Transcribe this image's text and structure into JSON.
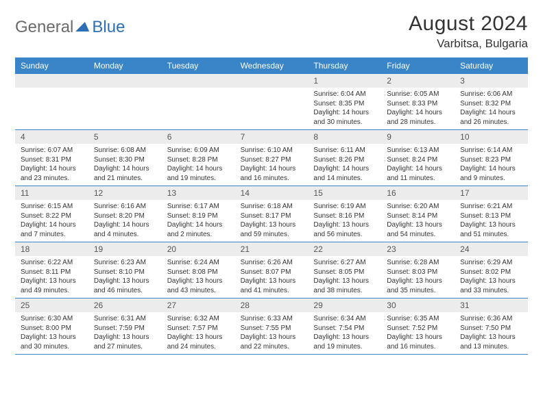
{
  "logo": {
    "part1": "General",
    "part2": "Blue"
  },
  "title": "August 2024",
  "location": "Varbitsa, Bulgaria",
  "colors": {
    "header_bg": "#3a85c8",
    "header_text": "#ffffff",
    "daynum_bg": "#ececec",
    "border": "#3a85c8",
    "logo_gray": "#6a6a6a",
    "logo_blue": "#2d6fb5"
  },
  "day_names": [
    "Sunday",
    "Monday",
    "Tuesday",
    "Wednesday",
    "Thursday",
    "Friday",
    "Saturday"
  ],
  "weeks": [
    [
      {
        "n": "",
        "sr": "",
        "ss": "",
        "dl": ""
      },
      {
        "n": "",
        "sr": "",
        "ss": "",
        "dl": ""
      },
      {
        "n": "",
        "sr": "",
        "ss": "",
        "dl": ""
      },
      {
        "n": "",
        "sr": "",
        "ss": "",
        "dl": ""
      },
      {
        "n": "1",
        "sr": "Sunrise: 6:04 AM",
        "ss": "Sunset: 8:35 PM",
        "dl": "Daylight: 14 hours and 30 minutes."
      },
      {
        "n": "2",
        "sr": "Sunrise: 6:05 AM",
        "ss": "Sunset: 8:33 PM",
        "dl": "Daylight: 14 hours and 28 minutes."
      },
      {
        "n": "3",
        "sr": "Sunrise: 6:06 AM",
        "ss": "Sunset: 8:32 PM",
        "dl": "Daylight: 14 hours and 26 minutes."
      }
    ],
    [
      {
        "n": "4",
        "sr": "Sunrise: 6:07 AM",
        "ss": "Sunset: 8:31 PM",
        "dl": "Daylight: 14 hours and 23 minutes."
      },
      {
        "n": "5",
        "sr": "Sunrise: 6:08 AM",
        "ss": "Sunset: 8:30 PM",
        "dl": "Daylight: 14 hours and 21 minutes."
      },
      {
        "n": "6",
        "sr": "Sunrise: 6:09 AM",
        "ss": "Sunset: 8:28 PM",
        "dl": "Daylight: 14 hours and 19 minutes."
      },
      {
        "n": "7",
        "sr": "Sunrise: 6:10 AM",
        "ss": "Sunset: 8:27 PM",
        "dl": "Daylight: 14 hours and 16 minutes."
      },
      {
        "n": "8",
        "sr": "Sunrise: 6:11 AM",
        "ss": "Sunset: 8:26 PM",
        "dl": "Daylight: 14 hours and 14 minutes."
      },
      {
        "n": "9",
        "sr": "Sunrise: 6:13 AM",
        "ss": "Sunset: 8:24 PM",
        "dl": "Daylight: 14 hours and 11 minutes."
      },
      {
        "n": "10",
        "sr": "Sunrise: 6:14 AM",
        "ss": "Sunset: 8:23 PM",
        "dl": "Daylight: 14 hours and 9 minutes."
      }
    ],
    [
      {
        "n": "11",
        "sr": "Sunrise: 6:15 AM",
        "ss": "Sunset: 8:22 PM",
        "dl": "Daylight: 14 hours and 7 minutes."
      },
      {
        "n": "12",
        "sr": "Sunrise: 6:16 AM",
        "ss": "Sunset: 8:20 PM",
        "dl": "Daylight: 14 hours and 4 minutes."
      },
      {
        "n": "13",
        "sr": "Sunrise: 6:17 AM",
        "ss": "Sunset: 8:19 PM",
        "dl": "Daylight: 14 hours and 2 minutes."
      },
      {
        "n": "14",
        "sr": "Sunrise: 6:18 AM",
        "ss": "Sunset: 8:17 PM",
        "dl": "Daylight: 13 hours and 59 minutes."
      },
      {
        "n": "15",
        "sr": "Sunrise: 6:19 AM",
        "ss": "Sunset: 8:16 PM",
        "dl": "Daylight: 13 hours and 56 minutes."
      },
      {
        "n": "16",
        "sr": "Sunrise: 6:20 AM",
        "ss": "Sunset: 8:14 PM",
        "dl": "Daylight: 13 hours and 54 minutes."
      },
      {
        "n": "17",
        "sr": "Sunrise: 6:21 AM",
        "ss": "Sunset: 8:13 PM",
        "dl": "Daylight: 13 hours and 51 minutes."
      }
    ],
    [
      {
        "n": "18",
        "sr": "Sunrise: 6:22 AM",
        "ss": "Sunset: 8:11 PM",
        "dl": "Daylight: 13 hours and 49 minutes."
      },
      {
        "n": "19",
        "sr": "Sunrise: 6:23 AM",
        "ss": "Sunset: 8:10 PM",
        "dl": "Daylight: 13 hours and 46 minutes."
      },
      {
        "n": "20",
        "sr": "Sunrise: 6:24 AM",
        "ss": "Sunset: 8:08 PM",
        "dl": "Daylight: 13 hours and 43 minutes."
      },
      {
        "n": "21",
        "sr": "Sunrise: 6:26 AM",
        "ss": "Sunset: 8:07 PM",
        "dl": "Daylight: 13 hours and 41 minutes."
      },
      {
        "n": "22",
        "sr": "Sunrise: 6:27 AM",
        "ss": "Sunset: 8:05 PM",
        "dl": "Daylight: 13 hours and 38 minutes."
      },
      {
        "n": "23",
        "sr": "Sunrise: 6:28 AM",
        "ss": "Sunset: 8:03 PM",
        "dl": "Daylight: 13 hours and 35 minutes."
      },
      {
        "n": "24",
        "sr": "Sunrise: 6:29 AM",
        "ss": "Sunset: 8:02 PM",
        "dl": "Daylight: 13 hours and 33 minutes."
      }
    ],
    [
      {
        "n": "25",
        "sr": "Sunrise: 6:30 AM",
        "ss": "Sunset: 8:00 PM",
        "dl": "Daylight: 13 hours and 30 minutes."
      },
      {
        "n": "26",
        "sr": "Sunrise: 6:31 AM",
        "ss": "Sunset: 7:59 PM",
        "dl": "Daylight: 13 hours and 27 minutes."
      },
      {
        "n": "27",
        "sr": "Sunrise: 6:32 AM",
        "ss": "Sunset: 7:57 PM",
        "dl": "Daylight: 13 hours and 24 minutes."
      },
      {
        "n": "28",
        "sr": "Sunrise: 6:33 AM",
        "ss": "Sunset: 7:55 PM",
        "dl": "Daylight: 13 hours and 22 minutes."
      },
      {
        "n": "29",
        "sr": "Sunrise: 6:34 AM",
        "ss": "Sunset: 7:54 PM",
        "dl": "Daylight: 13 hours and 19 minutes."
      },
      {
        "n": "30",
        "sr": "Sunrise: 6:35 AM",
        "ss": "Sunset: 7:52 PM",
        "dl": "Daylight: 13 hours and 16 minutes."
      },
      {
        "n": "31",
        "sr": "Sunrise: 6:36 AM",
        "ss": "Sunset: 7:50 PM",
        "dl": "Daylight: 13 hours and 13 minutes."
      }
    ]
  ]
}
